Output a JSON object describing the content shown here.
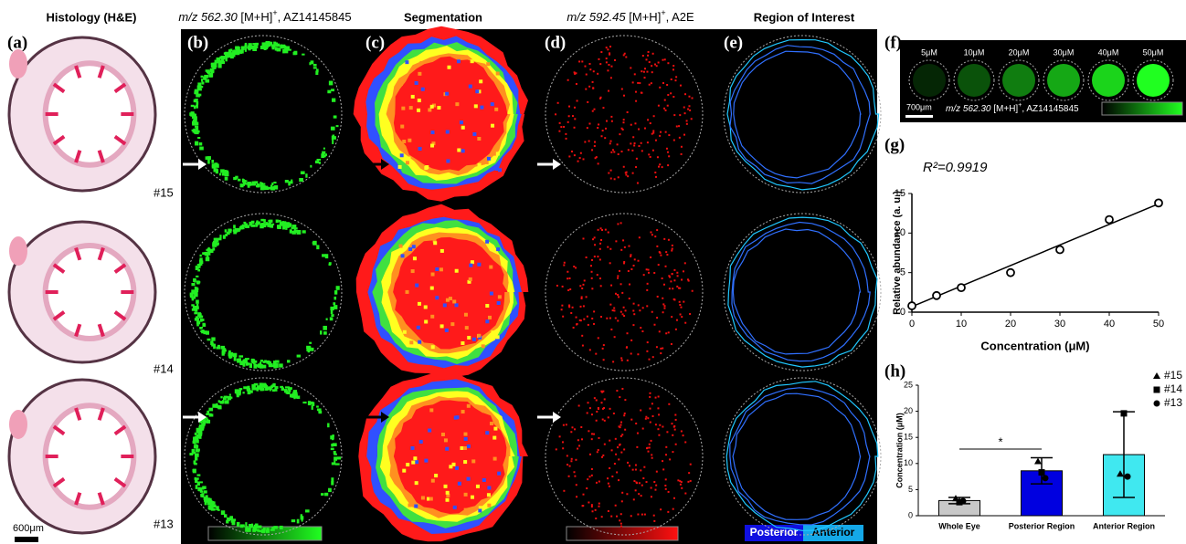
{
  "panels": {
    "a": {
      "label": "(a)",
      "title": "Histology (H&E)",
      "samples": [
        "#15",
        "#14",
        "#13"
      ],
      "scale_bar": "600μm"
    },
    "b": {
      "label": "(b)",
      "title_mz": "m/z 562.30",
      "title_adduct": " [M+H]",
      "title_charge": "+",
      "title_compound": ", AZ14145845"
    },
    "c": {
      "label": "(c)",
      "title": "Segmentation"
    },
    "d": {
      "label": "(d)",
      "title_mz": "m/z 592.45",
      "title_adduct": " [M+H]",
      "title_charge": "+",
      "title_compound": ", A2E"
    },
    "e": {
      "label": "(e)",
      "title": "Region of Interest",
      "legend": [
        "Posterior",
        "Anterior"
      ]
    },
    "f": {
      "label": "(f)",
      "concentrations": [
        "5μM",
        "10μM",
        "20μM",
        "30μM",
        "40μM",
        "50μM"
      ],
      "scale_bar": "700μm",
      "caption_mz": "m/z 562.30",
      "caption_adduct": " [M+H]",
      "caption_charge": "+",
      "caption_compound": ", AZ14145845"
    },
    "g": {
      "label": "(g)"
    },
    "h": {
      "label": "(h)"
    }
  },
  "chart_data": [
    {
      "type": "scatter",
      "annotation": "R²=0.9919",
      "x": [
        0,
        5,
        10,
        20,
        30,
        40,
        50
      ],
      "values": [
        0.8,
        2.1,
        3.1,
        5.0,
        7.9,
        11.7,
        13.8
      ],
      "color": "#000000",
      "trendline": {
        "x": [
          0,
          50
        ],
        "values": [
          0.7,
          13.7
        ]
      },
      "xlabel": "Concentration (μM)",
      "ylabel": "Relative abundance (a. u.)",
      "xlim": [
        0,
        50
      ],
      "xticks": [
        0,
        10,
        20,
        30,
        40,
        50
      ],
      "ylim": [
        0,
        15
      ],
      "yticks": [
        0,
        5,
        10,
        15
      ]
    },
    {
      "type": "bar",
      "categories": [
        "Whole Eye",
        "Posterior Region",
        "Anterior Region"
      ],
      "values": [
        2.9,
        8.6,
        11.7
      ],
      "errors": [
        0.6,
        2.5,
        8.2
      ],
      "colors": [
        "#c8c8c8",
        "#0000e0",
        "#40e8f0"
      ],
      "points": [
        {
          "name": "#15",
          "marker": "triangle",
          "values": [
            3.3,
            10.4,
            8.0
          ]
        },
        {
          "name": "#14",
          "marker": "square",
          "values": [
            2.6,
            8.3,
            19.6
          ]
        },
        {
          "name": "#13",
          "marker": "circle",
          "values": [
            2.8,
            7.2,
            7.5
          ]
        }
      ],
      "annotation": "*",
      "ylabel": "Concentration (μM)",
      "ylim": [
        0,
        25
      ],
      "yticks": [
        0,
        5,
        10,
        15,
        20,
        25
      ]
    }
  ]
}
